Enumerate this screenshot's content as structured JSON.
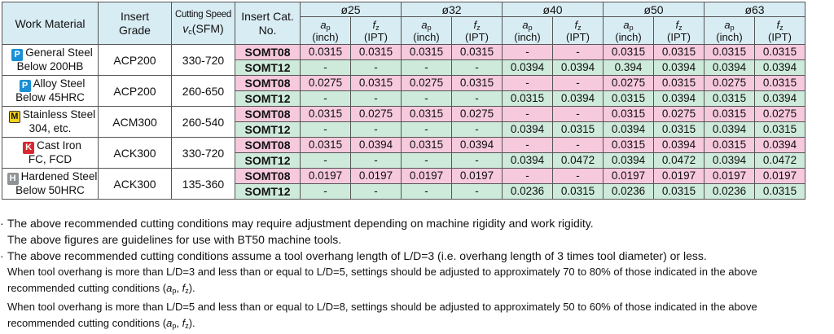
{
  "colors": {
    "header_bg": "#d8ecf3",
    "somt08_bg": "#f7c9dc",
    "somt12_bg": "#cdeadb",
    "P": "#1a8fd6",
    "M": "#f2d21b",
    "K": "#d9282f",
    "H": "#8f9396"
  },
  "headers": {
    "work_material": "Work Material",
    "insert_grade": [
      "Insert",
      "Grade"
    ],
    "cutting_speed": {
      "line1": "Cutting Speed",
      "vc_sym": "v",
      "vc_sub": "c",
      "vc_unit": "(SFM)"
    },
    "insert_cat": [
      "Insert Cat.",
      "No."
    ],
    "diameters": [
      "ø25",
      "ø32",
      "ø40",
      "ø50",
      "ø63"
    ],
    "ap": {
      "sym": "a",
      "sub": "p",
      "unit": "(inch)"
    },
    "fz": {
      "sym": "f",
      "sub": "z",
      "unit": "(IPT)"
    }
  },
  "rows": [
    {
      "code": "P",
      "name": [
        "General Steel",
        "Below 200HB"
      ],
      "grade": "ACP200",
      "speed": "330-720",
      "inserts": [
        {
          "cat": "SOMT08",
          "values": [
            "0.0315",
            "0.0315",
            "0.0315",
            "0.0315",
            "-",
            "-",
            "0.0315",
            "0.0315",
            "0.0315",
            "0.0315"
          ]
        },
        {
          "cat": "SOMT12",
          "values": [
            "-",
            "-",
            "-",
            "-",
            "0.0394",
            "0.0394",
            "0.394",
            "0.0394",
            "0.0394",
            "0.0394"
          ]
        }
      ]
    },
    {
      "code": "P",
      "name": [
        "Alloy Steel",
        "Below 45HRC"
      ],
      "grade": "ACP200",
      "speed": "260-650",
      "inserts": [
        {
          "cat": "SOMT08",
          "values": [
            "0.0275",
            "0.0315",
            "0.0275",
            "0.0315",
            "-",
            "-",
            "0.0275",
            "0.0315",
            "0.0275",
            "0.0315"
          ]
        },
        {
          "cat": "SOMT12",
          "values": [
            "-",
            "-",
            "-",
            "-",
            "0.0315",
            "0.0394",
            "0.0315",
            "0.0394",
            "0.0315",
            "0.0394"
          ]
        }
      ]
    },
    {
      "code": "M",
      "name": [
        "Stainless Steel",
        "304, etc."
      ],
      "grade": "ACM300",
      "speed": "260-540",
      "inserts": [
        {
          "cat": "SOMT08",
          "values": [
            "0.0315",
            "0.0275",
            "0.0315",
            "0.0275",
            "-",
            "-",
            "0.0315",
            "0.0275",
            "0.0315",
            "0.0275"
          ]
        },
        {
          "cat": "SOMT12",
          "values": [
            "-",
            "-",
            "-",
            "-",
            "0.0394",
            "0.0315",
            "0.0394",
            "0.0315",
            "0.0394",
            "0.0315"
          ]
        }
      ]
    },
    {
      "code": "K",
      "name": [
        "Cast Iron",
        "FC, FCD"
      ],
      "grade": "ACK300",
      "speed": "330-720",
      "inserts": [
        {
          "cat": "SOMT08",
          "values": [
            "0.0315",
            "0.0394",
            "0.0315",
            "0.0394",
            "-",
            "-",
            "0.0315",
            "0.0394",
            "0.0315",
            "0.0394"
          ]
        },
        {
          "cat": "SOMT12",
          "values": [
            "-",
            "-",
            "-",
            "-",
            "0.0394",
            "0.0472",
            "0.0394",
            "0.0472",
            "0.0394",
            "0.0472"
          ]
        }
      ]
    },
    {
      "code": "H",
      "name": [
        "Hardened Steel",
        "Below 50HRC"
      ],
      "grade": "ACK300",
      "speed": "135-360",
      "inserts": [
        {
          "cat": "SOMT08",
          "values": [
            "0.0197",
            "0.0197",
            "0.0197",
            "0.0197",
            "-",
            "-",
            "0.0197",
            "0.0197",
            "0.0197",
            "0.0197"
          ]
        },
        {
          "cat": "SOMT12",
          "values": [
            "-",
            "-",
            "-",
            "-",
            "0.0236",
            "0.0315",
            "0.0236",
            "0.0315",
            "0.0236",
            "0.0315"
          ]
        }
      ]
    }
  ],
  "notes": {
    "bullet": "·",
    "n1": "The above recommended cutting conditions may require adjustment depending on machine rigidity and work rigidity.",
    "n2": "The above figures are guidelines for use with BT50 machine tools.",
    "n3": "The above recommended cutting conditions assume a tool overhang length of L/D=3 (i.e. overhang length of 3 times tool diameter) or less.",
    "n4": "When tool overhang is more than L/D=3 and less than or equal to L/D=5, settings should be adjusted to approximately 70 to 80% of those indicated in the above",
    "n5": "When tool overhang is more than L/D=5 and less than or equal to L/D=8, settings should be adjusted to approximately 50 to 60% of those indicated in the above",
    "rcc": "recommended cutting conditions (",
    "ap_sym": "a",
    "ap_sub": "p",
    "sep": ", ",
    "fz_sym": "f",
    "fz_sub": "z",
    "close": ")."
  }
}
